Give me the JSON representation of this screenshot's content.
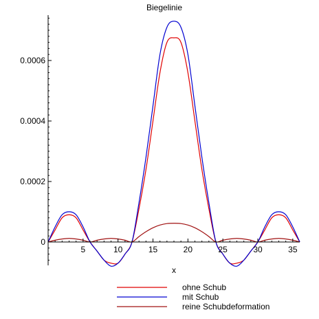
{
  "chart_data": {
    "type": "line",
    "title": "Biegelinie",
    "xlabel": "x",
    "ylabel": "",
    "xlim": [
      0,
      36
    ],
    "ylim": [
      -0.0001,
      0.00075
    ],
    "xticks": [
      5,
      10,
      15,
      20,
      25,
      30,
      35
    ],
    "yticks": [
      0,
      0.0002,
      0.0004,
      0.0006
    ],
    "ytick_labels": [
      "0",
      "0.0002",
      "0.0004",
      "0.0006"
    ],
    "grid": false,
    "legend_position": "bottom",
    "series": [
      {
        "name": "ohne Schub",
        "color": "#e00000",
        "x": [
          0,
          1,
          2,
          3,
          4,
          5,
          6,
          7,
          8,
          9,
          10,
          11,
          12,
          13,
          14,
          15,
          16,
          17,
          18,
          19,
          20,
          21,
          22,
          23,
          24,
          25,
          26,
          27,
          28,
          29,
          30,
          31,
          32,
          33,
          34,
          35,
          36
        ],
        "y": [
          0,
          4e-05,
          8e-05,
          9e-05,
          8e-05,
          4e-05,
          0,
          -3e-05,
          -6e-05,
          -7e-05,
          -7e-05,
          -4e-05,
          0,
          0.00011,
          0.00024,
          0.0004,
          0.00056,
          0.00066,
          0.000675,
          0.00066,
          0.00056,
          0.0004,
          0.00024,
          0.00011,
          0,
          -4e-05,
          -7e-05,
          -7e-05,
          -6e-05,
          -3e-05,
          0,
          4e-05,
          8e-05,
          9e-05,
          8e-05,
          4e-05,
          0
        ]
      },
      {
        "name": "mit Schub",
        "color": "#0000d0",
        "x": [
          0,
          1,
          2,
          3,
          4,
          5,
          6,
          7,
          8,
          9,
          10,
          11,
          12,
          13,
          14,
          15,
          16,
          17,
          18,
          19,
          20,
          21,
          22,
          23,
          24,
          25,
          26,
          27,
          28,
          29,
          30,
          31,
          32,
          33,
          34,
          35,
          36
        ],
        "y": [
          0,
          5e-05,
          9e-05,
          0.0001,
          9e-05,
          5e-05,
          0,
          -3e-05,
          -6e-05,
          -8e-05,
          -7e-05,
          -4e-05,
          0,
          0.00013,
          0.00028,
          0.00045,
          0.00062,
          0.00071,
          0.00073,
          0.00071,
          0.00062,
          0.00045,
          0.00028,
          0.00013,
          0,
          -4e-05,
          -7e-05,
          -8e-05,
          -6e-05,
          -3e-05,
          0,
          5e-05,
          9e-05,
          0.0001,
          9e-05,
          5e-05,
          0
        ]
      },
      {
        "name": "reine Schubdeformation",
        "color": "#a01010",
        "x": [
          0,
          1,
          2,
          3,
          4,
          5,
          6,
          7,
          8,
          9,
          10,
          11,
          12,
          13,
          14,
          15,
          16,
          17,
          18,
          19,
          20,
          21,
          22,
          23,
          24,
          25,
          26,
          27,
          28,
          29,
          30,
          31,
          32,
          33,
          34,
          35,
          36
        ],
        "y": [
          0,
          6e-06,
          1e-05,
          1.2e-05,
          1e-05,
          6e-06,
          0,
          6e-06,
          1e-05,
          1.2e-05,
          1e-05,
          6e-06,
          0,
          1.8e-05,
          3.4e-05,
          4.7e-05,
          5.6e-05,
          6.1e-05,
          6.2e-05,
          6.1e-05,
          5.6e-05,
          4.7e-05,
          3.4e-05,
          1.8e-05,
          0,
          6e-06,
          1e-05,
          1.2e-05,
          1e-05,
          6e-06,
          0,
          6e-06,
          1e-05,
          1.2e-05,
          1e-05,
          6e-06,
          0
        ]
      }
    ]
  }
}
